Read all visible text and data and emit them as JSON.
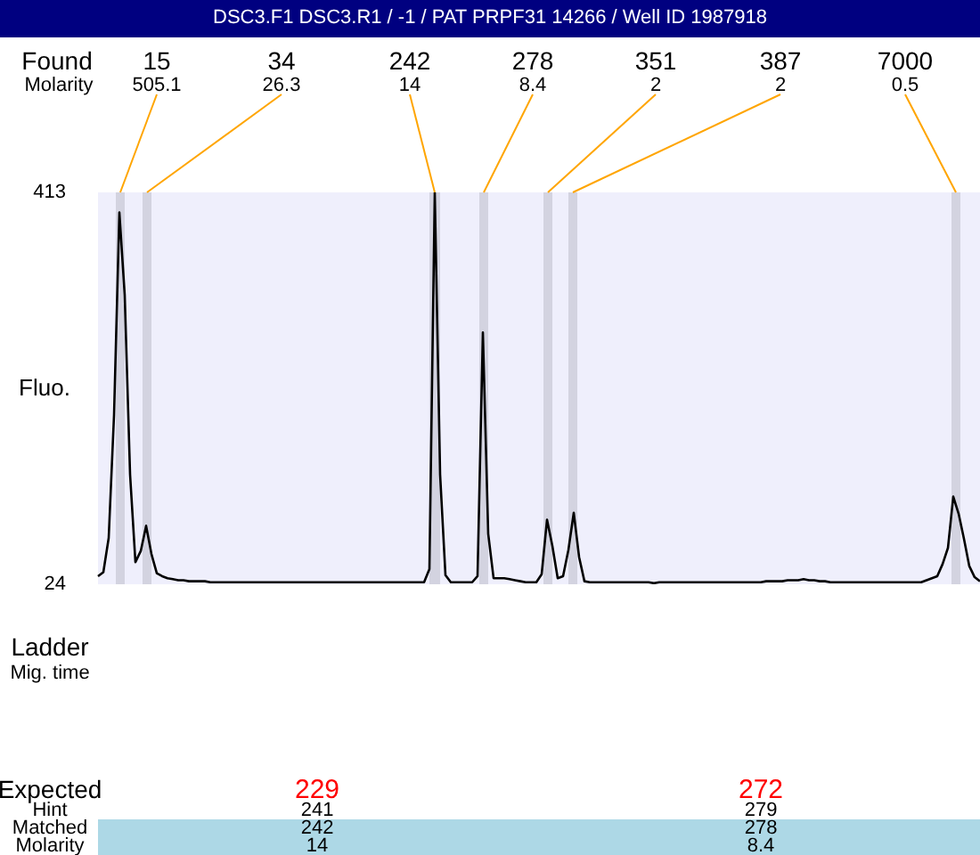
{
  "chart_data": {
    "type": "line",
    "title": "DSC3.F1  DSC3.R1  / -1  / PAT  PRPF31 14266 / Well ID 1987918",
    "ylabel": "Fluo.",
    "categories": [
      null,
      null,
      null,
      null,
      null,
      null,
      null,
      null,
      null,
      null,
      null,
      null,
      null,
      null,
      null,
      null,
      null,
      null,
      null,
      null,
      null,
      null,
      null,
      null,
      null,
      null,
      null,
      null,
      null,
      null,
      null,
      null,
      null,
      null,
      null,
      null,
      null,
      null,
      null,
      null,
      null,
      null,
      null,
      null,
      null,
      null,
      null,
      null,
      null,
      null,
      null,
      null,
      null,
      null,
      null,
      null,
      null,
      null,
      null,
      null,
      null,
      null,
      null,
      null,
      null,
      null,
      null,
      null,
      null,
      null,
      null,
      null,
      null,
      null,
      null,
      null,
      null,
      null,
      null,
      null,
      null,
      null,
      null,
      null,
      null,
      null,
      null,
      null,
      null,
      null,
      null,
      null,
      null,
      null,
      null,
      null,
      null,
      null,
      null,
      null,
      null,
      null,
      null,
      null,
      null,
      null,
      null,
      null,
      null,
      null,
      null,
      null,
      null,
      null,
      null,
      null,
      null,
      null,
      null,
      null,
      null,
      null,
      null,
      null,
      null,
      null,
      null,
      null,
      null,
      null,
      null,
      null,
      null,
      null,
      null,
      null,
      null,
      null,
      null,
      null,
      null,
      null,
      null,
      null,
      null,
      null,
      null,
      null,
      null,
      null,
      null,
      null,
      null,
      null,
      null,
      null,
      null,
      null,
      null,
      null,
      null,
      null,
      null,
      null,
      null,
      null
    ],
    "ylim": [
      24,
      413
    ],
    "yticks": [
      24,
      413
    ],
    "tick_labels": "y",
    "grid": false,
    "legend": false,
    "series": [
      {
        "color": "#000000",
        "values": [
          32,
          36,
          70,
          192,
          393,
          311,
          133,
          46,
          57,
          82,
          54,
          35,
          32,
          30,
          29,
          28,
          28,
          27,
          27,
          27,
          27,
          26,
          26,
          26,
          26,
          26,
          26,
          26,
          26,
          26,
          26,
          26,
          26,
          26,
          26,
          26,
          26,
          26,
          26,
          26,
          26,
          26,
          26,
          26,
          26,
          26,
          26,
          26,
          26,
          26,
          26,
          26,
          26,
          26,
          26,
          26,
          26,
          26,
          26,
          26,
          26,
          26,
          39,
          413,
          133,
          33,
          26,
          26,
          26,
          26,
          26,
          32,
          274,
          74,
          30,
          30,
          30,
          29,
          28,
          27,
          26,
          26,
          26,
          34,
          88,
          62,
          30,
          32,
          58,
          95,
          51,
          27,
          26,
          26,
          26,
          26,
          26,
          26,
          26,
          26,
          26,
          26,
          26,
          26,
          25,
          26,
          26,
          26,
          26,
          26,
          26,
          26,
          26,
          26,
          26,
          26,
          26,
          26,
          26,
          26,
          26,
          26,
          26,
          26,
          26,
          27,
          27,
          27,
          27,
          28,
          28,
          28,
          29,
          28,
          28,
          27,
          27,
          26,
          26,
          26,
          26,
          26,
          26,
          26,
          26,
          26,
          26,
          26,
          26,
          26,
          26,
          26,
          26,
          26,
          26,
          28,
          30,
          32,
          44,
          60,
          111,
          94,
          69,
          42,
          31,
          27
        ]
      }
    ],
    "annotations": [
      "Found",
      "Molarity",
      "15",
      "505.1",
      "34",
      "26.3",
      "242",
      "14",
      "278",
      "8.4",
      "351",
      "2",
      "387",
      "2",
      "7000",
      "0.5",
      "Ladder",
      "Mig. time",
      "Expected",
      "Hint",
      "Matched",
      "Molarity",
      "229",
      "241",
      "242",
      "14",
      "272",
      "279",
      "278",
      "8.4"
    ]
  }
}
